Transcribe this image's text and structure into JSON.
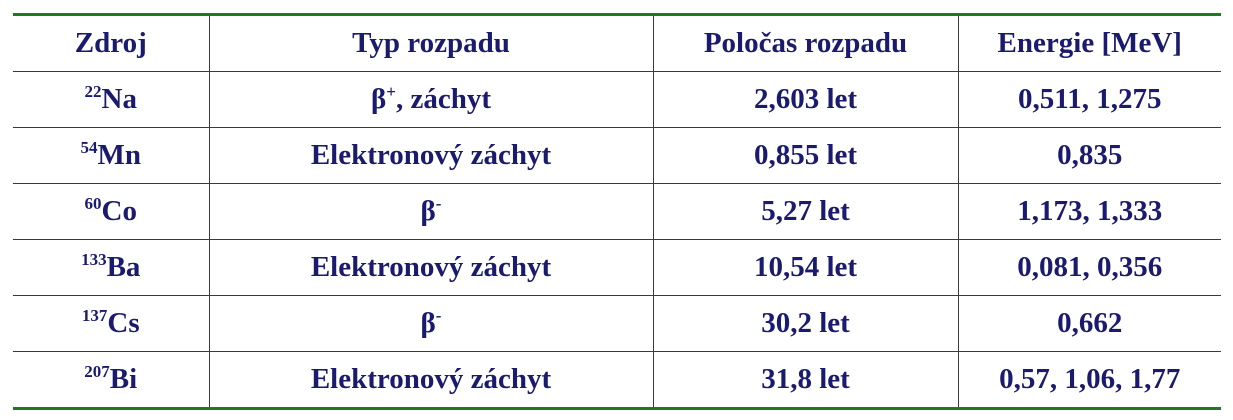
{
  "colors": {
    "text": "#1a1a6e",
    "rule": "#1e7a1e",
    "grid": "#3a3a3a"
  },
  "headers": {
    "source": "Zdroj",
    "decay_type": "Typ rozpadu",
    "half_life": "Poločas rozpadu",
    "energy": "Energie [MeV]"
  },
  "rows": [
    {
      "mass": "22",
      "element": "Na",
      "decay_base": "β",
      "decay_sup": "+",
      "decay_rest": ", záchyt",
      "half_life": "2,603 let",
      "energy": "0,511, 1,275"
    },
    {
      "mass": "54",
      "element": "Mn",
      "decay_base": "Elektronový záchyt",
      "decay_sup": "",
      "decay_rest": "",
      "half_life": "0,855 let",
      "energy": "0,835"
    },
    {
      "mass": "60",
      "element": "Co",
      "decay_base": "β",
      "decay_sup": "-",
      "decay_rest": "",
      "half_life": "5,27 let",
      "energy": "1,173, 1,333"
    },
    {
      "mass": "133",
      "element": "Ba",
      "decay_base": "Elektronový záchyt",
      "decay_sup": "",
      "decay_rest": "",
      "half_life": "10,54 let",
      "energy": "0,081, 0,356"
    },
    {
      "mass": "137",
      "element": "Cs",
      "decay_base": "β",
      "decay_sup": "-",
      "decay_rest": "",
      "half_life": "30,2 let",
      "energy": "0,662"
    },
    {
      "mass": "207",
      "element": "Bi",
      "decay_base": "Elektronový záchyt",
      "decay_sup": "",
      "decay_rest": "",
      "half_life": "31,8 let",
      "energy": "0,57, 1,06, 1,77"
    }
  ]
}
